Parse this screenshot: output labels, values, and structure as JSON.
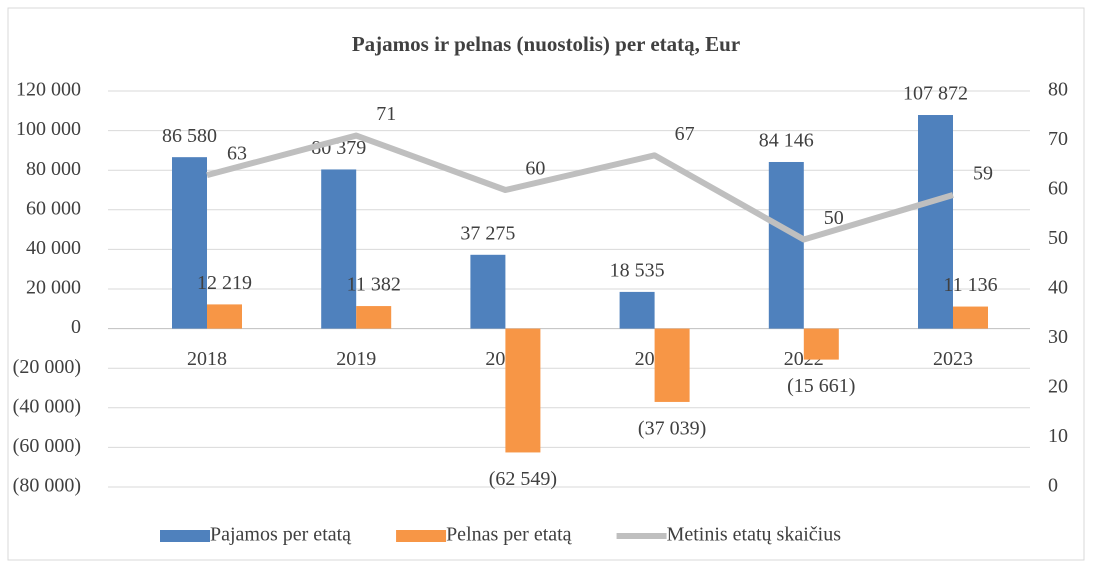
{
  "chart_data": {
    "type": "bar_line",
    "title": "Pajamos ir pelnas (nuostolis) per etatą, Eur",
    "categories": [
      "2018",
      "2019",
      "2020",
      "2021",
      "2022",
      "2023"
    ],
    "series": [
      {
        "name": "Pajamos per etatą",
        "type": "bar",
        "color": "#4f81bd",
        "values": [
          86580,
          80379,
          37275,
          18535,
          84146,
          107872
        ],
        "value_labels": [
          "86 580",
          "80 379",
          "37 275",
          "18 535",
          "84 146",
          "107 872"
        ]
      },
      {
        "name": "Pelnas per etatą",
        "type": "bar",
        "color": "#f79646",
        "values": [
          12219,
          11382,
          -62549,
          -37039,
          -15661,
          11136
        ],
        "value_labels": [
          "12 219",
          "11 382",
          "(62 549)",
          "(37 039)",
          "(15 661)",
          "11 136"
        ]
      },
      {
        "name": "Metinis etatų skaičius",
        "type": "line",
        "axis": "y2",
        "color": "#bfbfbf",
        "values": [
          63,
          71,
          60,
          67,
          50,
          59
        ]
      }
    ],
    "ylim": [
      -80000,
      120000
    ],
    "yticks": [
      {
        "value": -80000,
        "label": "(80 000)"
      },
      {
        "value": -60000,
        "label": "(60 000)"
      },
      {
        "value": -40000,
        "label": "(40 000)"
      },
      {
        "value": -20000,
        "label": "(20 000)"
      },
      0,
      {
        "value": 20000,
        "label": "20 000"
      },
      {
        "value": 40000,
        "label": "40 000"
      },
      {
        "value": 60000,
        "label": "60 000"
      },
      {
        "value": 80000,
        "label": "80 000"
      },
      {
        "value": 100000,
        "label": "100 000"
      },
      {
        "value": 120000,
        "label": "120 000"
      }
    ],
    "y2lim": [
      0,
      80
    ],
    "y2ticks": [
      0,
      10,
      20,
      30,
      40,
      50,
      60,
      70,
      80
    ],
    "grid": true,
    "legend": "bottom"
  }
}
